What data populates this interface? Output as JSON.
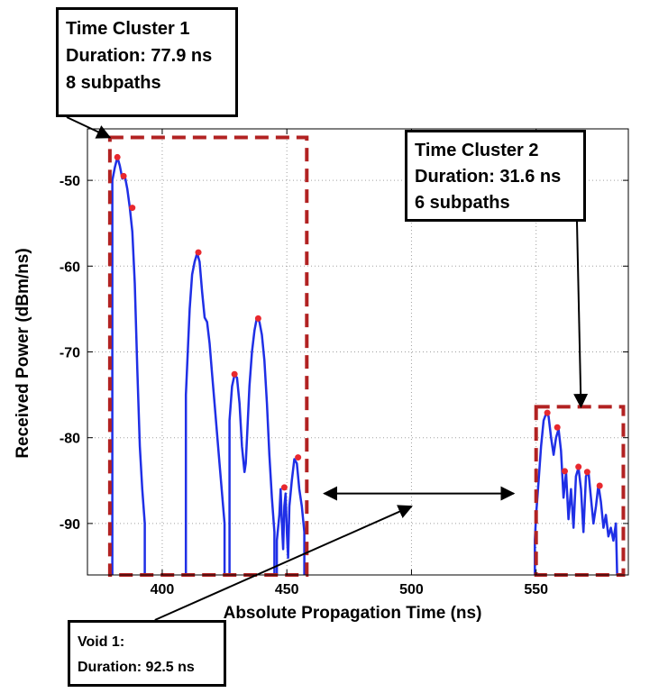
{
  "chart_data": {
    "type": "line",
    "xlabel": "Absolute Propagation Time (ns)",
    "ylabel": "Received Power (dBm/ns)",
    "xlim": [
      370,
      587
    ],
    "ylim": [
      -96,
      -44
    ],
    "xticks": [
      400,
      450,
      500,
      550
    ],
    "yticks": [
      -50,
      -60,
      -70,
      -80,
      -90
    ],
    "grid": true,
    "colors": {
      "trace": "#1f2fe6",
      "peaks": "#e8282e",
      "cluster_box": "#b22222",
      "arrow": "#000000"
    },
    "segments": [
      {
        "x": [
          380,
          380,
          381,
          382,
          383,
          384,
          385,
          386,
          387,
          388,
          389,
          390,
          391,
          392,
          393,
          393
        ],
        "y": [
          -96,
          -50,
          -48.5,
          -47.3,
          -48.3,
          -49.8,
          -49.5,
          -51,
          -53.2,
          -56,
          -62,
          -72,
          -81,
          -86,
          -90,
          -96
        ]
      },
      {
        "x": [
          409.5,
          409.5,
          411,
          412,
          413,
          414,
          415,
          416,
          417,
          418,
          419,
          420,
          421,
          423,
          425,
          425
        ],
        "y": [
          -96,
          -75,
          -65,
          -61,
          -59.5,
          -58.5,
          -59.5,
          -63,
          -66,
          -66.5,
          -69,
          -72.5,
          -76,
          -83,
          -90,
          -96
        ]
      },
      {
        "x": [
          427,
          427,
          428,
          429,
          430,
          431,
          432,
          433,
          433.5,
          434,
          435,
          436,
          437,
          438,
          439,
          440,
          441,
          442,
          443,
          444,
          445,
          445
        ],
        "y": [
          -96,
          -78,
          -74,
          -72.7,
          -73,
          -76,
          -81,
          -84,
          -83,
          -80,
          -74,
          -70,
          -67.5,
          -66,
          -66.5,
          -68,
          -71,
          -76,
          -82,
          -87,
          -91,
          -96
        ]
      },
      {
        "x": [
          446,
          446,
          447,
          447.5,
          448,
          448.5,
          449,
          449.5,
          450,
          450.5,
          451,
          452,
          453,
          454,
          455,
          456,
          457,
          457
        ],
        "y": [
          -96,
          -92,
          -89,
          -86,
          -90,
          -93,
          -88,
          -86.5,
          -91,
          -94,
          -88,
          -85,
          -82.5,
          -83,
          -86,
          -88,
          -91,
          -96
        ]
      },
      {
        "x": [
          549.5,
          549.5,
          550,
          551,
          552,
          553,
          554,
          555,
          556,
          557,
          558,
          559,
          560,
          561,
          562,
          563,
          564,
          565,
          566,
          567,
          568,
          569,
          570,
          571,
          572,
          573,
          574,
          575,
          576,
          577,
          578,
          579,
          580,
          581,
          582,
          582.5
        ],
        "y": [
          -96,
          -92,
          -89,
          -85,
          -81,
          -78,
          -77.2,
          -77.5,
          -80,
          -82,
          -80,
          -79,
          -81.5,
          -87,
          -84,
          -89.5,
          -86,
          -90.5,
          -84.5,
          -83.5,
          -86,
          -91,
          -84.5,
          -84,
          -87,
          -90,
          -88,
          -85.5,
          -87.5,
          -90.5,
          -89,
          -91.5,
          -90.5,
          -92,
          -90,
          -96
        ]
      }
    ],
    "peaks": {
      "x": [
        382,
        384.5,
        388,
        414.5,
        429,
        438.5,
        449,
        454.5,
        554.5,
        558.5,
        561.5,
        567,
        570.5,
        575.5
      ],
      "y": [
        -47.3,
        -49.5,
        -53.2,
        -58.4,
        -72.6,
        -66.1,
        -85.8,
        -82.3,
        -77.1,
        -78.8,
        -83.9,
        -83.4,
        -84.0,
        -85.6
      ]
    },
    "cluster_boxes": [
      {
        "x0": 379,
        "x1": 458,
        "y0": -96,
        "y1": -45
      },
      {
        "x0": 550,
        "x1": 585,
        "y0": -96,
        "y1": -76.4
      }
    ],
    "void_span": {
      "x0": 465,
      "x1": 541,
      "y": -86.5
    },
    "annotations": {
      "cluster1": {
        "lines": [
          "Time Cluster 1",
          "Duration: 77.9 ns",
          "8 subpaths"
        ],
        "target": {
          "x": 379,
          "y": -45
        }
      },
      "cluster2": {
        "lines": [
          "Time Cluster 2",
          "Duration: 31.6 ns",
          "6 subpaths"
        ],
        "target": {
          "x": 568,
          "y": -76.4
        }
      },
      "void1": {
        "lines": [
          "Void 1:",
          "Duration: 92.5 ns"
        ],
        "target": {
          "x": 500,
          "y": -88
        }
      }
    }
  }
}
